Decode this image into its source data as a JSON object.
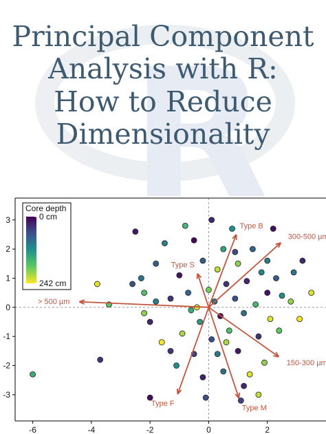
{
  "header": {
    "title_lines": [
      "Principal Component",
      "Analysis with R:",
      "How to Reduce",
      "Dimensionality"
    ]
  },
  "chart_data": {
    "type": "scatter",
    "xlim": [
      -6.6,
      4.0
    ],
    "ylim": [
      -3.9,
      3.75
    ],
    "xticks": [
      -6,
      -4,
      -2,
      0,
      2
    ],
    "yticks": [
      -3,
      -2,
      -1,
      0,
      1,
      2,
      3
    ],
    "colorbar": {
      "title": "Core depth",
      "clim": [
        0,
        242
      ],
      "ticks": [
        {
          "value": 0,
          "label": "0 cm"
        },
        {
          "value": 242,
          "label": "242 cm"
        }
      ]
    },
    "x": [
      -6.0,
      -3.7,
      -3.8,
      -3.4,
      -2.5,
      -2.6,
      -2.3,
      -2.2,
      -2.0,
      -2.0,
      -1.8,
      -1.6,
      -1.5,
      -1.3,
      -1.1,
      -1.0,
      -0.9,
      -0.8,
      -0.7,
      -0.5,
      -0.5,
      -0.4,
      -0.3,
      -0.2,
      -0.2,
      0.0,
      0.1,
      0.1,
      0.2,
      0.3,
      0.4,
      0.5,
      0.5,
      0.6,
      0.7,
      0.8,
      0.9,
      1.0,
      1.0,
      1.1,
      1.2,
      1.3,
      1.4,
      1.5,
      1.6,
      1.7,
      1.8,
      1.9,
      2.0,
      2.1,
      2.2,
      2.3,
      2.4,
      2.5,
      2.8,
      2.9,
      3.1,
      3.5,
      -1.3,
      -0.6,
      0.3,
      1.2,
      0.6,
      -1.8,
      -0.1,
      1.7,
      0.9,
      2.0,
      -2.2,
      3.2
    ],
    "y": [
      -2.3,
      -1.8,
      0.8,
      0.1,
      2.6,
      0.8,
      1.0,
      -0.2,
      -0.5,
      -3.1,
      1.5,
      -1.2,
      2.2,
      0.3,
      -2.0,
      1.1,
      -0.9,
      2.8,
      0.5,
      -1.6,
      2.3,
      0.0,
      -0.5,
      1.6,
      -2.4,
      0.6,
      -1.1,
      3.0,
      0.2,
      1.3,
      -0.3,
      2.0,
      -2.2,
      0.8,
      -0.8,
      2.7,
      0.3,
      -1.5,
      1.5,
      -3.2,
      -0.2,
      0.9,
      -2.3,
      2.0,
      0.1,
      -1.0,
      1.2,
      -1.9,
      0.5,
      -0.4,
      2.7,
      1.0,
      -0.8,
      0.4,
      0.2,
      1.2,
      -0.4,
      0.5,
      -1.5,
      -0.1,
      -1.6,
      -2.7,
      -1.2,
      0.2,
      -3.1,
      -3.0,
      1.9,
      1.6,
      0.5,
      1.6
    ],
    "depth": [
      150,
      40,
      230,
      180,
      20,
      60,
      90,
      200,
      30,
      10,
      70,
      240,
      100,
      40,
      120,
      15,
      210,
      160,
      80,
      50,
      5,
      230,
      130,
      70,
      25,
      190,
      60,
      30,
      100,
      220,
      10,
      140,
      90,
      40,
      170,
      120,
      60,
      20,
      200,
      50,
      90,
      30,
      230,
      80,
      160,
      40,
      110,
      200,
      15,
      230,
      10,
      70,
      180,
      120,
      200,
      90,
      240,
      230,
      40,
      150,
      100,
      30,
      210,
      100,
      60,
      220,
      55,
      100,
      170,
      30
    ],
    "loadings": [
      {
        "name": "Type B",
        "x": 0.94,
        "y": 2.5
      },
      {
        "name": "300-500 µm",
        "x": 2.46,
        "y": 2.22
      },
      {
        "name": "Type S",
        "x": -0.38,
        "y": 1.16
      },
      {
        "name": "> 500 µm",
        "x": -4.41,
        "y": 0.19
      },
      {
        "name": "Type F",
        "x": -1.06,
        "y": -2.98
      },
      {
        "name": "Type M",
        "x": 1.03,
        "y": -3.12
      },
      {
        "name": "150-300 µm",
        "x": 2.39,
        "y": -1.7
      }
    ]
  }
}
